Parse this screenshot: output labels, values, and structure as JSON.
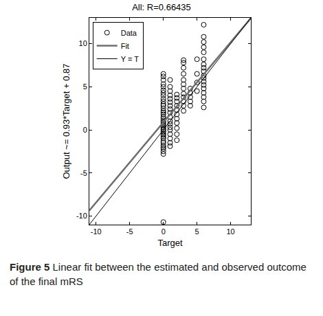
{
  "chart_data": {
    "type": "scatter",
    "title": "All: R=0.66435",
    "x_label": "Target",
    "y_label": "Output ~= 0.93*Target + 0.87",
    "xlim": [
      -11,
      13
    ],
    "ylim": [
      -11,
      13
    ],
    "xticks": [
      -10,
      -5,
      0,
      5,
      10
    ],
    "yticks": [
      -10,
      -5,
      0,
      5,
      10
    ],
    "grid": false,
    "legend": "upper left",
    "series": [
      {
        "name": "Data",
        "type": "scatter",
        "marker": "circle-open",
        "color": "#000000",
        "x": [
          0,
          0,
          0,
          0,
          0,
          0,
          0,
          0,
          0,
          0,
          0,
          0,
          0,
          0,
          0,
          0,
          0,
          0,
          0,
          0,
          0,
          0,
          0,
          0,
          0,
          0,
          0,
          0,
          0,
          0,
          0,
          0,
          0,
          0,
          0,
          0,
          0,
          0,
          1,
          1,
          1,
          1,
          1,
          1,
          1,
          1,
          1,
          1,
          1,
          1,
          1,
          1,
          1,
          1,
          1,
          1,
          2,
          2,
          2,
          2,
          2,
          2,
          2,
          2,
          2,
          2,
          2,
          3,
          3,
          3,
          3,
          3,
          3,
          3,
          3,
          3,
          3,
          3,
          3,
          4,
          4,
          4,
          4,
          4,
          5,
          5,
          5,
          5,
          6,
          6,
          6,
          6,
          6,
          6,
          6,
          6,
          6,
          6,
          6,
          6,
          6,
          6,
          6,
          6,
          6,
          6
        ],
        "values": [
          -2.8,
          -2.5,
          -2.2,
          -2,
          -1.8,
          -1.5,
          -1.3,
          -1,
          -0.8,
          -0.6,
          -0.4,
          -0.2,
          0,
          0.1,
          0.3,
          0.5,
          0.7,
          0.9,
          1.1,
          1.3,
          1.5,
          1.8,
          2,
          2.2,
          2.5,
          2.8,
          3,
          3.3,
          3.6,
          4,
          4.3,
          4.6,
          5,
          5.3,
          5.8,
          6.2,
          6.5,
          -10.7,
          -1.9,
          -1.5,
          -1,
          -0.5,
          0,
          0.3,
          0.7,
          1,
          1.5,
          2,
          2.4,
          2.8,
          3.2,
          3.6,
          4,
          4.5,
          5,
          5.8,
          -1.2,
          -0.5,
          0.2,
          0.8,
          1.3,
          1.8,
          2.3,
          2.8,
          3.3,
          3.7,
          4.1,
          2.2,
          2.8,
          3.3,
          3.8,
          4.2,
          4.8,
          5.3,
          5.8,
          6.5,
          7.2,
          7.8,
          8.1,
          2.8,
          3.3,
          3.8,
          4.3,
          4.8,
          4.5,
          5.5,
          6.5,
          8.2,
          2.6,
          3.3,
          3.8,
          4.3,
          4.8,
          5.2,
          5.6,
          6,
          6.3,
          6.8,
          7.2,
          7.6,
          8.2,
          9,
          9.6,
          10.2,
          10.8,
          12.2
        ]
      },
      {
        "name": "Fit",
        "type": "line",
        "line_style": "solid",
        "color": "#6e6e6e",
        "x": [
          -11,
          13
        ],
        "values": [
          -9.36,
          12.96
        ]
      },
      {
        "name": "Y = T",
        "type": "line",
        "line_style": "solid",
        "color": "#000000",
        "x": [
          -11,
          13
        ],
        "values": [
          -11,
          13
        ]
      }
    ]
  },
  "caption": {
    "label": "Figure 5",
    "text": "Linear fit between the estimated and observed outcome of the final mRS"
  }
}
